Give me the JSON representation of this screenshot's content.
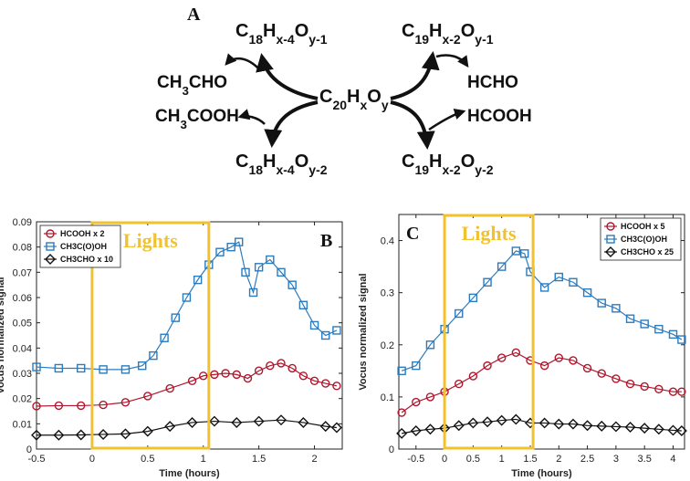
{
  "scheme": {
    "panel": "A",
    "center": {
      "base": "C",
      "parts": [
        [
          "20",
          "sub"
        ],
        [
          "H",
          ""
        ],
        [
          "x",
          "sub"
        ],
        [
          "O",
          ""
        ],
        [
          "y",
          "sub"
        ]
      ]
    },
    "left_upper": {
      "parts": [
        [
          "C",
          ""
        ],
        [
          "18",
          "sub"
        ],
        [
          "H",
          ""
        ],
        [
          "x-4",
          "sub"
        ],
        [
          "O",
          ""
        ],
        [
          "y-1",
          "sub"
        ]
      ]
    },
    "left_lower": {
      "parts": [
        [
          "C",
          ""
        ],
        [
          "18",
          "sub"
        ],
        [
          "H",
          ""
        ],
        [
          "x-4",
          "sub"
        ],
        [
          "O",
          ""
        ],
        [
          "y-2",
          "sub"
        ]
      ]
    },
    "right_upper": {
      "parts": [
        [
          "C",
          ""
        ],
        [
          "19",
          "sub"
        ],
        [
          "H",
          ""
        ],
        [
          "x-2",
          "sub"
        ],
        [
          "O",
          ""
        ],
        [
          "y-1",
          "sub"
        ]
      ]
    },
    "right_lower": {
      "parts": [
        [
          "C",
          ""
        ],
        [
          "19",
          "sub"
        ],
        [
          "H",
          ""
        ],
        [
          "x-2",
          "sub"
        ],
        [
          "O",
          ""
        ],
        [
          "y-2",
          "sub"
        ]
      ]
    },
    "left_product_1": {
      "parts": [
        [
          "CH",
          ""
        ],
        [
          "3",
          "sub"
        ],
        [
          "CHO",
          ""
        ]
      ]
    },
    "left_product_2": {
      "parts": [
        [
          "CH",
          ""
        ],
        [
          "3",
          "sub"
        ],
        [
          "COOH",
          ""
        ]
      ]
    },
    "right_product_1": {
      "parts": [
        [
          "HCHO",
          ""
        ]
      ]
    },
    "right_product_2": {
      "parts": [
        [
          "HCOOH",
          ""
        ]
      ]
    }
  },
  "colors": {
    "hcooh": "#b0162b",
    "ch3cooh": "#2b7bbf",
    "ch3cho": "#111111",
    "lights": "#f2c12e"
  },
  "chart_data": [
    {
      "type": "scatter",
      "panel": "B",
      "xlabel": "Time (hours)",
      "ylabel": "Vocus normalized signal",
      "xlim": [
        -0.5,
        2.25
      ],
      "ylim": [
        0,
        0.09
      ],
      "xticks": [
        -0.5,
        0,
        0.5,
        1,
        1.5,
        2
      ],
      "xtick_labels": [
        "-0.5",
        "0",
        "0.5",
        "1",
        "1.5",
        "2"
      ],
      "yticks": [
        0,
        0.01,
        0.02,
        0.03,
        0.04,
        0.05,
        0.06,
        0.07,
        0.08,
        0.09
      ],
      "ytick_labels": [
        "0",
        "0.01",
        "0.02",
        "0.03",
        "0.04",
        "0.05",
        "0.06",
        "0.07",
        "0.08",
        "0.09"
      ],
      "lights_label": "Lights",
      "lights_range": [
        0,
        1.05
      ],
      "legend_position": "top-left",
      "series": [
        {
          "name": "HCOOH x 2",
          "marker": "circle",
          "color": "#b0162b",
          "x": [
            -0.5,
            -0.3,
            -0.1,
            0.1,
            0.3,
            0.5,
            0.7,
            0.9,
            1.0,
            1.1,
            1.2,
            1.3,
            1.4,
            1.5,
            1.6,
            1.7,
            1.8,
            1.9,
            2.0,
            2.1,
            2.2
          ],
          "y": [
            0.017,
            0.0172,
            0.0172,
            0.0175,
            0.0185,
            0.021,
            0.024,
            0.027,
            0.029,
            0.0295,
            0.03,
            0.0295,
            0.028,
            0.031,
            0.033,
            0.034,
            0.032,
            0.029,
            0.027,
            0.026,
            0.025
          ]
        },
        {
          "name": "CH3C(O)OH",
          "marker": "square",
          "color": "#2b7bbf",
          "x": [
            -0.5,
            -0.3,
            -0.1,
            0.1,
            0.3,
            0.45,
            0.55,
            0.65,
            0.75,
            0.85,
            0.95,
            1.05,
            1.15,
            1.25,
            1.32,
            1.38,
            1.45,
            1.5,
            1.6,
            1.7,
            1.8,
            1.9,
            2.0,
            2.1,
            2.2
          ],
          "y": [
            0.0325,
            0.032,
            0.032,
            0.0315,
            0.0315,
            0.033,
            0.037,
            0.044,
            0.052,
            0.06,
            0.067,
            0.073,
            0.078,
            0.08,
            0.082,
            0.07,
            0.062,
            0.072,
            0.075,
            0.07,
            0.065,
            0.057,
            0.049,
            0.045,
            0.047
          ]
        },
        {
          "name": "CH3CHO x 10",
          "marker": "diamond",
          "color": "#111111",
          "x": [
            -0.5,
            -0.3,
            -0.1,
            0.1,
            0.3,
            0.5,
            0.7,
            0.9,
            1.1,
            1.3,
            1.5,
            1.7,
            1.9,
            2.1,
            2.2
          ],
          "y": [
            0.0055,
            0.0055,
            0.0056,
            0.0058,
            0.006,
            0.007,
            0.009,
            0.0105,
            0.011,
            0.0105,
            0.011,
            0.0115,
            0.0105,
            0.009,
            0.0085
          ]
        }
      ]
    },
    {
      "type": "scatter",
      "panel": "C",
      "xlabel": "Time (hours)",
      "ylabel": "Vocus normalized signal",
      "xlim": [
        -0.8,
        4.2
      ],
      "ylim": [
        0,
        0.45
      ],
      "xticks": [
        -0.5,
        0,
        0.5,
        1,
        1.5,
        2,
        2.5,
        3,
        3.5,
        4
      ],
      "xtick_labels": [
        "-0.5",
        "0",
        "0.5",
        "1",
        "1.5",
        "2",
        "2.5",
        "3",
        "3.5",
        "4"
      ],
      "yticks": [
        0,
        0.1,
        0.2,
        0.3,
        0.4
      ],
      "ytick_labels": [
        "0",
        "0.1",
        "0.2",
        "0.3",
        "0.4"
      ],
      "lights_label": "Lights",
      "lights_range": [
        0,
        1.55
      ],
      "legend_position": "top-right",
      "series": [
        {
          "name": "HCOOH x 5",
          "marker": "circle",
          "color": "#b0162b",
          "x": [
            -0.75,
            -0.5,
            -0.25,
            0,
            0.25,
            0.5,
            0.75,
            1.0,
            1.25,
            1.5,
            1.75,
            2.0,
            2.25,
            2.5,
            2.75,
            3.0,
            3.25,
            3.5,
            3.75,
            4.0,
            4.15
          ],
          "y": [
            0.07,
            0.09,
            0.1,
            0.11,
            0.125,
            0.14,
            0.16,
            0.175,
            0.185,
            0.17,
            0.16,
            0.175,
            0.17,
            0.155,
            0.145,
            0.135,
            0.125,
            0.12,
            0.115,
            0.11,
            0.11
          ]
        },
        {
          "name": "CH3C(O)OH",
          "marker": "square",
          "color": "#2b7bbf",
          "x": [
            -0.75,
            -0.5,
            -0.25,
            0,
            0.25,
            0.5,
            0.75,
            1.0,
            1.25,
            1.4,
            1.5,
            1.75,
            2.0,
            2.25,
            2.5,
            2.75,
            3.0,
            3.25,
            3.5,
            3.75,
            4.0,
            4.15
          ],
          "y": [
            0.15,
            0.16,
            0.2,
            0.23,
            0.26,
            0.29,
            0.32,
            0.35,
            0.38,
            0.375,
            0.34,
            0.31,
            0.33,
            0.32,
            0.3,
            0.28,
            0.27,
            0.25,
            0.24,
            0.23,
            0.22,
            0.21
          ]
        },
        {
          "name": "CH3CHO x 25",
          "marker": "diamond",
          "color": "#111111",
          "x": [
            -0.75,
            -0.5,
            -0.25,
            0,
            0.25,
            0.5,
            0.75,
            1.0,
            1.25,
            1.5,
            1.75,
            2.0,
            2.25,
            2.5,
            2.75,
            3.0,
            3.25,
            3.5,
            3.75,
            4.0,
            4.15
          ],
          "y": [
            0.03,
            0.035,
            0.038,
            0.04,
            0.045,
            0.05,
            0.052,
            0.055,
            0.057,
            0.05,
            0.05,
            0.048,
            0.048,
            0.045,
            0.044,
            0.043,
            0.042,
            0.04,
            0.038,
            0.036,
            0.035
          ]
        }
      ]
    }
  ]
}
